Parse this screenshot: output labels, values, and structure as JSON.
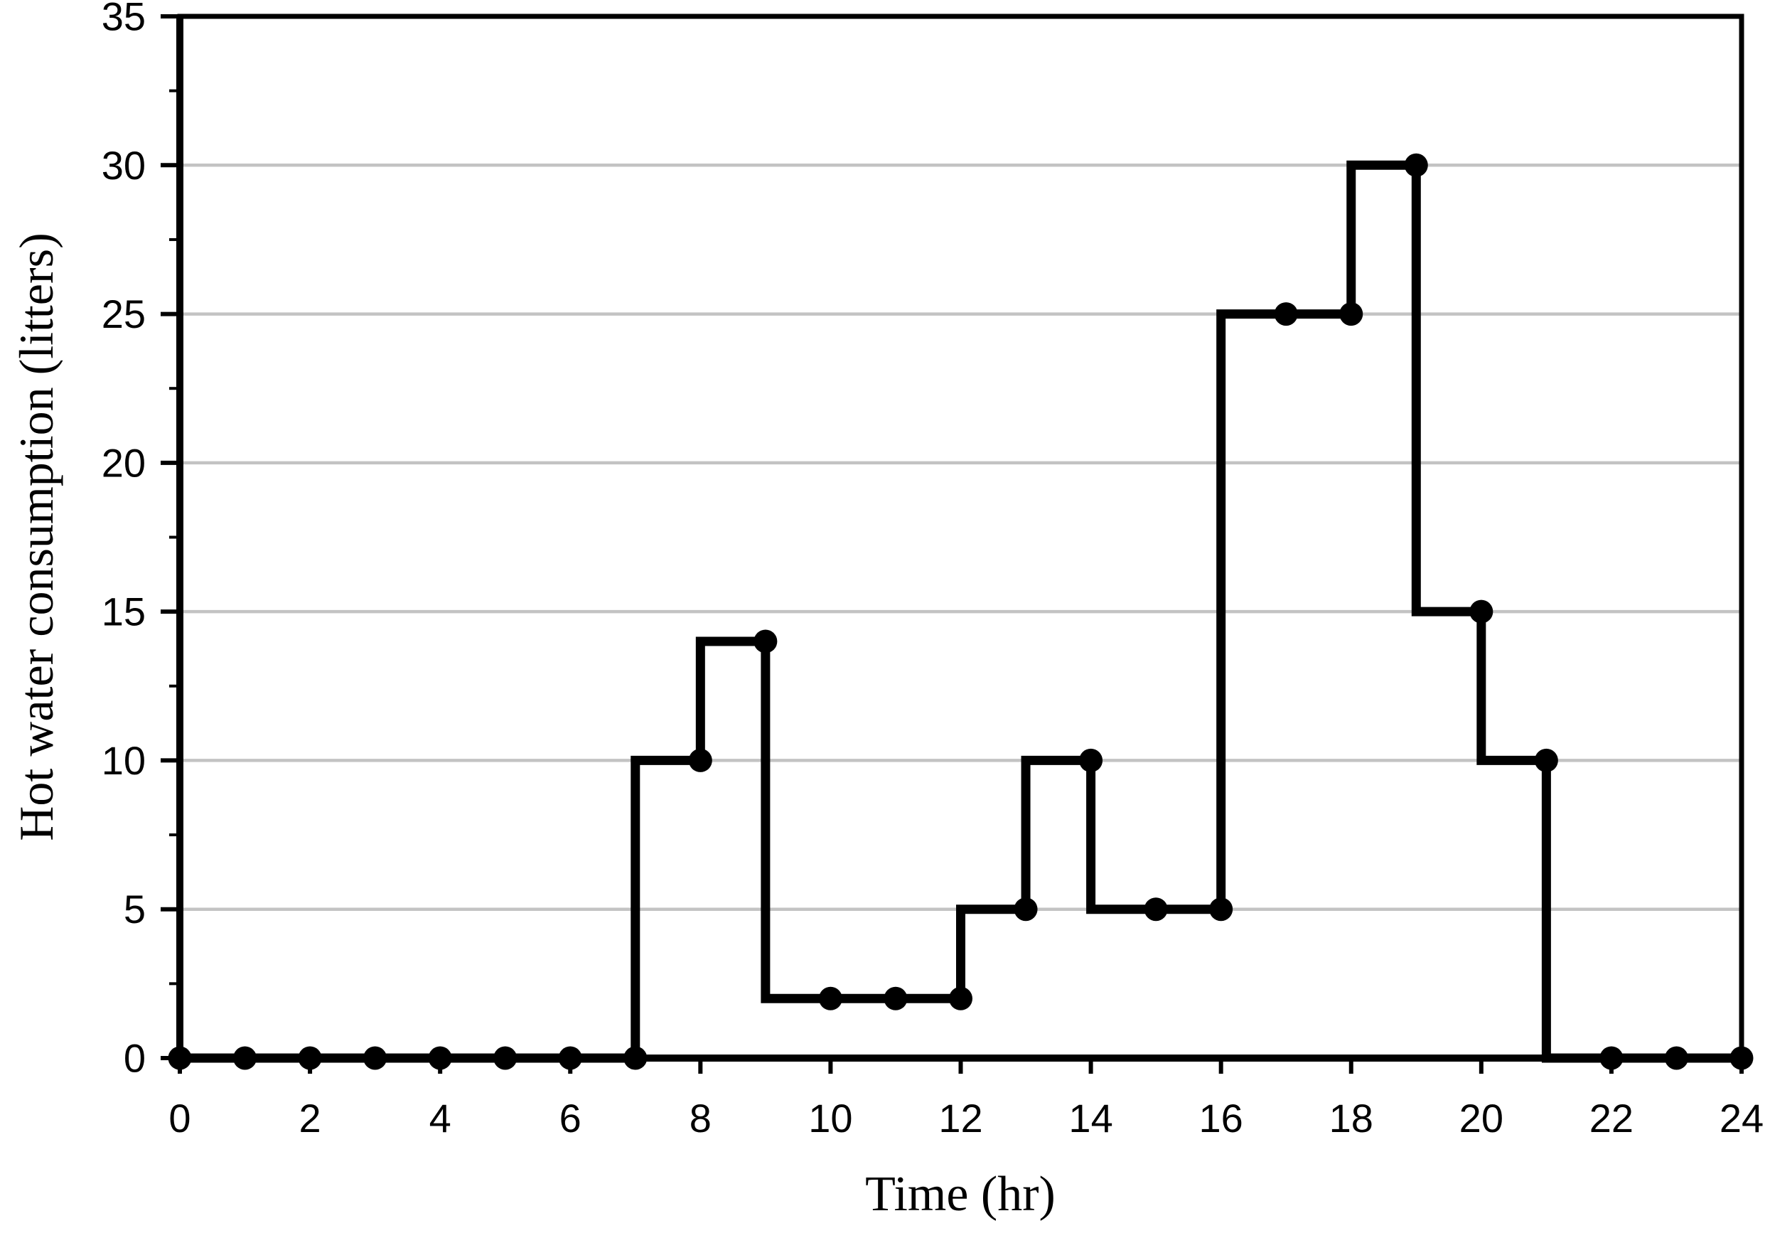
{
  "figure": {
    "background": "#ffffff"
  },
  "chart_data": {
    "type": "line",
    "step_mode": "pre",
    "title": "",
    "xlabel": "Time (hr)",
    "ylabel": "Hot water consumption (litters)",
    "x": [
      0,
      1,
      2,
      3,
      4,
      5,
      6,
      7,
      8,
      9,
      10,
      11,
      12,
      13,
      14,
      15,
      16,
      17,
      18,
      19,
      20,
      21,
      22,
      23,
      24
    ],
    "values": [
      0,
      0,
      0,
      0,
      0,
      0,
      0,
      0,
      10,
      14,
      2,
      2,
      2,
      5,
      10,
      5,
      5,
      25,
      25,
      30,
      15,
      10,
      0,
      0,
      0
    ],
    "xlim": [
      0,
      24
    ],
    "ylim": [
      0,
      35
    ],
    "x_major_ticks": [
      0,
      2,
      4,
      6,
      8,
      10,
      12,
      14,
      16,
      18,
      20,
      22,
      24
    ],
    "y_major_ticks": [
      0,
      5,
      10,
      15,
      20,
      25,
      30,
      35
    ],
    "y_minor_ticks": [
      2.5,
      7.5,
      12.5,
      17.5,
      22.5,
      27.5,
      32.5
    ],
    "grid_y": [
      5,
      10,
      15,
      20,
      25,
      30
    ],
    "grid_on": true,
    "legend_position": "none",
    "line_color": "#000000",
    "marker": "filled-circle",
    "marker_color": "#000000",
    "grid_color": "#c3c3c3",
    "frame_color": "#000000",
    "label_color": "#000000"
  }
}
